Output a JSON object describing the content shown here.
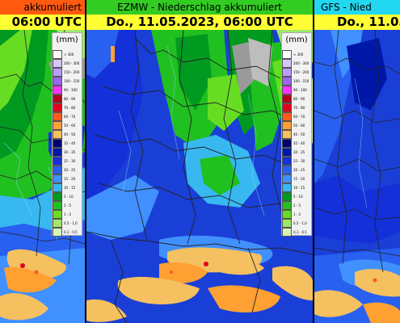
{
  "panels": {
    "left": {
      "title": "akkumuliert",
      "date": "06:00 UTC",
      "title_color": "#ff5a10"
    },
    "middle": {
      "title": "EZMW - Niederschlag akkumuliert",
      "date": "Do., 11.05.2023, 06:00 UTC",
      "title_color": "#33cc22"
    },
    "right": {
      "title": "GFS - Nied",
      "date": "Do., 11.05",
      "title_color": "#22d8f0"
    }
  },
  "legend": {
    "unit": "(mm)",
    "items": [
      {
        "label": "> 300",
        "color": "#ffffff"
      },
      {
        "label": "200 - 300",
        "color": "#d6c6ff"
      },
      {
        "label": "150 - 200",
        "color": "#b89cff"
      },
      {
        "label": "100 - 150",
        "color": "#9966ee"
      },
      {
        "label": "90 - 100",
        "color": "#ff33ff"
      },
      {
        "label": "80 - 90",
        "color": "#b3001b"
      },
      {
        "label": "70 - 80",
        "color": "#e0001e"
      },
      {
        "label": "60 - 70",
        "color": "#ff5a1a"
      },
      {
        "label": "50 - 60",
        "color": "#ffa033"
      },
      {
        "label": "40 - 50",
        "color": "#f5c060"
      },
      {
        "label": "35 - 40",
        "color": "#00006e"
      },
      {
        "label": "30 - 35",
        "color": "#0018a8"
      },
      {
        "label": "25 - 30",
        "color": "#1430d8"
      },
      {
        "label": "20 - 25",
        "color": "#2860f0"
      },
      {
        "label": "15 - 20",
        "color": "#4090ff"
      },
      {
        "label": "10 - 15",
        "color": "#38b8f0"
      },
      {
        "label": "5 - 10",
        "color": "#009a20"
      },
      {
        "label": "2 - 5",
        "color": "#20c020"
      },
      {
        "label": "1 - 2",
        "color": "#66dd22"
      },
      {
        "label": "0,5 - 1,0",
        "color": "#9fe86a"
      },
      {
        "label": "0,1 - 0,5",
        "color": "#d4f5b8"
      }
    ]
  }
}
